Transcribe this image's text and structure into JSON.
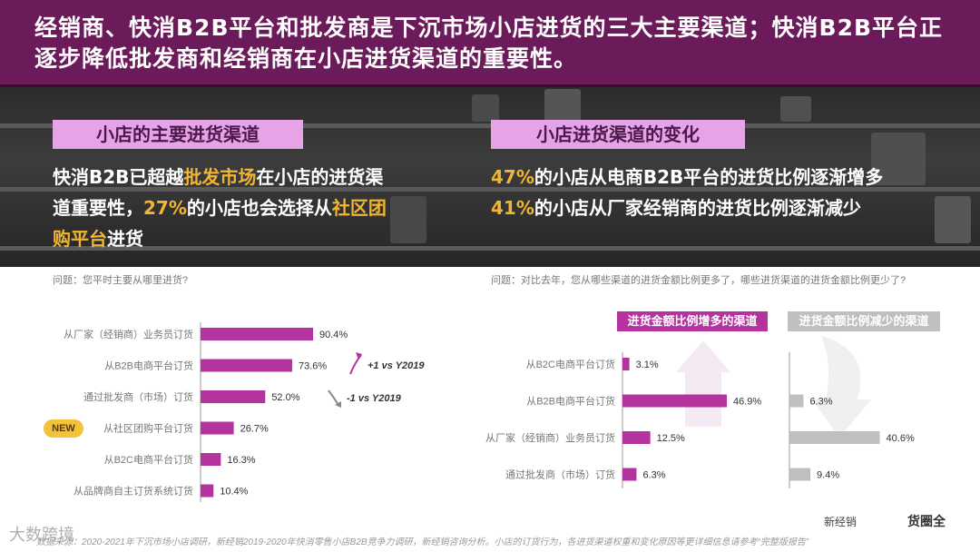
{
  "title": "经销商、快消B2B平台和批发商是下沉市场小店进货的三大主要渠道；快消B2B平台正逐步降低批发商和经销商在小店进货渠道的重要性。",
  "hero": {
    "left_label": "小店的主要进货渠道",
    "left_text": {
      "p1": "快消B2B已超越",
      "h1": "批发市场",
      "p2": "在小店的进货渠道重要性，",
      "h2": "27%",
      "p3": "的小店也会选择从",
      "h3": "社区团购平台",
      "p4": "进货"
    },
    "right_label": "小店进货渠道的变化",
    "right_lines": [
      {
        "pct": "47%",
        "text": "的小店从电商B2B平台的进货比例逐渐增多"
      },
      {
        "pct": "41%",
        "text": "的小店从厂家经销商的进货比例逐渐减少"
      }
    ]
  },
  "left_question": "问题：您平时主要从哪里进货?",
  "right_question": "问题：对比去年，您从哪些渠道的进货金额比例更多了，哪些进货渠道的进货金额比例更少了?",
  "new_badge": "NEW",
  "trend_up": "+1 vs Y2019",
  "trend_down": "-1 vs Y2019",
  "legend_inc": "进货金额比例增多的渠道",
  "legend_dec": "进货金额比例减少的渠道",
  "colors": {
    "purple": "#b5339e",
    "gray": "#bfbfbf",
    "title_bg": "#6b1a5a",
    "pink": "#e6a3e8",
    "highlight": "#f2b531"
  },
  "chart_data": [
    {
      "type": "bar",
      "orientation": "horizontal",
      "categories": [
        "从厂家（经销商）业务员订货",
        "从B2B电商平台订货",
        "通过批发商（市场）订货",
        "从社区团购平台订货",
        "从B2C电商平台订货",
        "从品牌商自主订货系统订货"
      ],
      "values": [
        90.4,
        73.6,
        52.0,
        26.7,
        16.3,
        10.4
      ],
      "labels": [
        "90.4%",
        "73.6%",
        "52.0%",
        "26.7%",
        "16.3%",
        "10.4%"
      ]
    },
    {
      "type": "bar",
      "orientation": "horizontal",
      "categories": [
        "从B2C电商平台订货",
        "从B2B电商平台订货",
        "从厂家（经销商）业务员订货",
        "通过批发商（市场）订货"
      ],
      "series": [
        {
          "name": "进货金额比例增多的渠道",
          "values": [
            3.1,
            46.9,
            12.5,
            6.3
          ],
          "labels": [
            "3.1%",
            "46.9%",
            "12.5%",
            "6.3%"
          ]
        },
        {
          "name": "进货金额比例减少的渠道",
          "values": [
            null,
            6.3,
            40.6,
            9.4
          ],
          "labels": [
            "",
            "6.3%",
            "40.6%",
            "9.4%"
          ]
        }
      ]
    }
  ],
  "footer": "数据来源：2020-2021年下沉市场小店调研，新经销2019-2020年快消零售小店B2B竞争力调研，新经销咨询分析。小店的订货行为，各进货渠道权重和变化原因等更详细信息请参考“完整版报告”",
  "watermark": "大数跨境",
  "logo_1": "新经销",
  "logo_2": "货圈全"
}
